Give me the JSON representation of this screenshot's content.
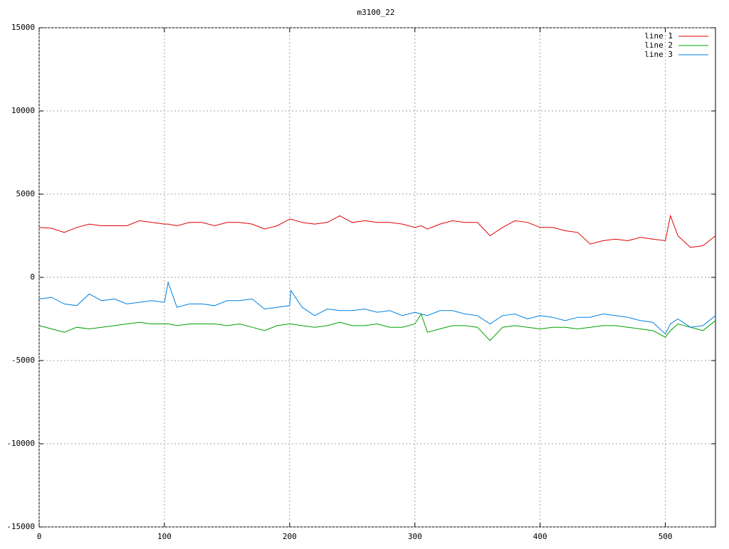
{
  "chart_data": {
    "type": "line",
    "title": "m3100_22",
    "x": [
      0,
      10,
      20,
      30,
      40,
      50,
      60,
      70,
      80,
      90,
      100,
      103,
      110,
      120,
      130,
      140,
      150,
      160,
      170,
      180,
      190,
      200,
      201,
      210,
      220,
      230,
      240,
      250,
      260,
      270,
      280,
      290,
      300,
      305,
      310,
      320,
      330,
      340,
      350,
      360,
      370,
      380,
      390,
      400,
      410,
      420,
      430,
      440,
      450,
      460,
      470,
      480,
      490,
      500,
      504,
      510,
      520,
      530,
      540
    ],
    "series": [
      {
        "name": "line 1",
        "color": "#e00000",
        "values": [
          3000,
          2950,
          2700,
          3000,
          3200,
          3100,
          3100,
          3100,
          3400,
          3300,
          3200,
          3200,
          3100,
          3300,
          3300,
          3100,
          3300,
          3300,
          3200,
          2900,
          3100,
          3500,
          3500,
          3300,
          3200,
          3300,
          3700,
          3300,
          3400,
          3300,
          3300,
          3200,
          3000,
          3100,
          2900,
          3200,
          3400,
          3300,
          3300,
          2500,
          3000,
          3400,
          3300,
          3000,
          3000,
          2800,
          2700,
          2000,
          2200,
          2300,
          2200,
          2400,
          2300,
          2200,
          3700,
          2500,
          1800,
          1900,
          2500
        ]
      },
      {
        "name": "line 2",
        "color": "#00a000",
        "values": [
          -2900,
          -3100,
          -3300,
          -3000,
          -3100,
          -3000,
          -2900,
          -2800,
          -2700,
          -2800,
          -2800,
          -2800,
          -2900,
          -2800,
          -2800,
          -2800,
          -2900,
          -2800,
          -3000,
          -3200,
          -2900,
          -2800,
          -2800,
          -2900,
          -3000,
          -2900,
          -2700,
          -2900,
          -2900,
          -2800,
          -3000,
          -3000,
          -2800,
          -2200,
          -3300,
          -3100,
          -2900,
          -2900,
          -3000,
          -3800,
          -3000,
          -2900,
          -3000,
          -3100,
          -3000,
          -3000,
          -3100,
          -3000,
          -2900,
          -2900,
          -3000,
          -3100,
          -3200,
          -3600,
          -3200,
          -2800,
          -3000,
          -3200,
          -2600
        ]
      },
      {
        "name": "line 3",
        "color": "#0080e0",
        "values": [
          -1300,
          -1200,
          -1600,
          -1700,
          -1000,
          -1400,
          -1300,
          -1600,
          -1500,
          -1400,
          -1500,
          -300,
          -1800,
          -1600,
          -1600,
          -1700,
          -1400,
          -1400,
          -1300,
          -1900,
          -1800,
          -1700,
          -800,
          -1800,
          -2300,
          -1900,
          -2000,
          -2000,
          -1900,
          -2100,
          -2000,
          -2300,
          -2100,
          -2200,
          -2300,
          -2000,
          -2000,
          -2200,
          -2300,
          -2800,
          -2300,
          -2200,
          -2500,
          -2300,
          -2400,
          -2600,
          -2400,
          -2400,
          -2200,
          -2300,
          -2400,
          -2600,
          -2700,
          -3400,
          -2800,
          -2500,
          -3000,
          -2900,
          -2300
        ]
      }
    ],
    "xlim": [
      0,
      540
    ],
    "xticks": [
      0,
      100,
      200,
      300,
      400,
      500
    ],
    "ylim": [
      -15000,
      15000
    ],
    "yticks": [
      -15000,
      -10000,
      -5000,
      0,
      5000,
      10000,
      15000
    ],
    "grid": true,
    "legend": "top-right"
  }
}
